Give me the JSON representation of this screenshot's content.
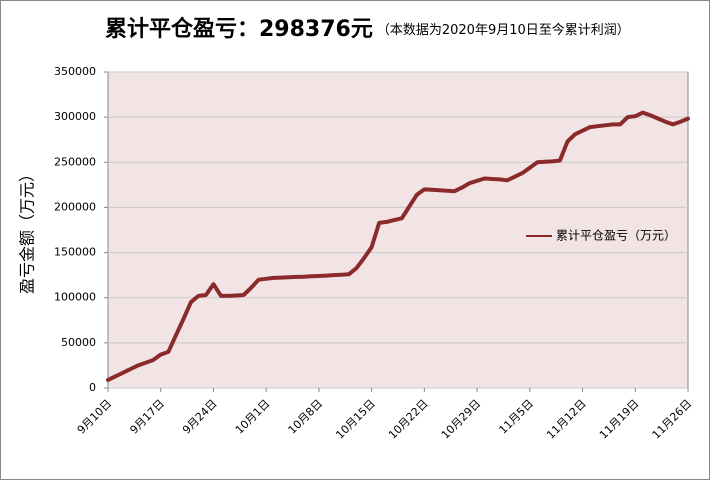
{
  "chart_data": {
    "type": "line",
    "title": "累计平仓盈亏：298376元",
    "subtitle": "（本数据为2020年9月10日至今累计利润）",
    "y_label": "盈亏金额（万元）",
    "categories": [
      "9月10日",
      null,
      null,
      null,
      null,
      null,
      null,
      "9月17日",
      null,
      null,
      null,
      null,
      null,
      null,
      "9月24日",
      null,
      null,
      null,
      null,
      null,
      null,
      "10月1日",
      null,
      null,
      null,
      null,
      null,
      null,
      "10月8日",
      null,
      null,
      null,
      null,
      null,
      null,
      "10月15日",
      null,
      null,
      null,
      null,
      null,
      null,
      "10月22日",
      null,
      null,
      null,
      null,
      null,
      null,
      "10月29日",
      null,
      null,
      null,
      null,
      null,
      null,
      "11月5日",
      null,
      null,
      null,
      null,
      null,
      null,
      "11月12日",
      null,
      null,
      null,
      null,
      null,
      null,
      "11月19日",
      null,
      null,
      null,
      null,
      null,
      null,
      "11月26日"
    ],
    "series": [
      {
        "name": "累计平仓盈亏（万元）",
        "color": "#8b2a2a",
        "values": [
          9000,
          13000,
          17000,
          21000,
          25000,
          28000,
          31000,
          37000,
          40000,
          58000,
          76000,
          95000,
          102000,
          103000,
          115000,
          102000,
          102000,
          102500,
          103000,
          111000,
          120000,
          121000,
          122000,
          122300,
          122600,
          123000,
          123300,
          123700,
          124000,
          124500,
          125000,
          125500,
          126000,
          133000,
          144000,
          156000,
          183000,
          184000,
          186000,
          188000,
          201000,
          214000,
          220000,
          219500,
          219000,
          218500,
          218000,
          222000,
          227000,
          229500,
          232000,
          231500,
          231000,
          230000,
          234000,
          238000,
          244000,
          250000,
          250500,
          251000,
          252000,
          273000,
          281000,
          285000,
          289000,
          290000,
          291000,
          292000,
          292000,
          300000,
          301000,
          305000,
          302000,
          298500,
          295000,
          292000,
          295000,
          298376
        ]
      }
    ],
    "ylim": [
      0,
      350000
    ],
    "yticks": [
      0,
      50000,
      100000,
      150000,
      200000,
      250000,
      300000,
      350000
    ],
    "grid": true,
    "legend": "right"
  }
}
